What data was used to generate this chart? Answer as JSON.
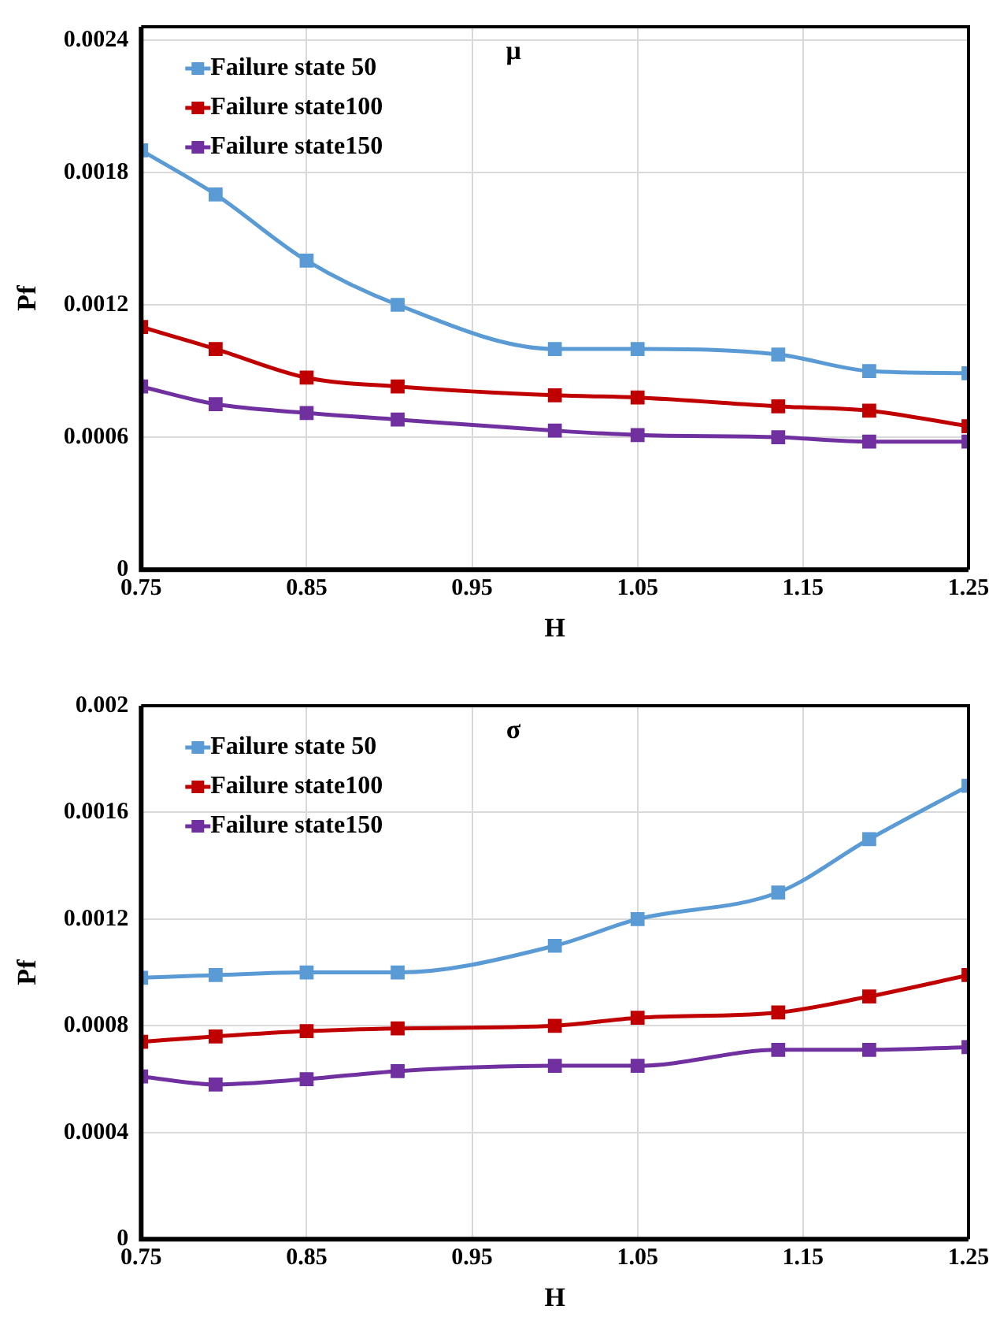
{
  "chart_data": [
    {
      "type": "line",
      "title": "μ",
      "xlabel": "H",
      "ylabel": "Pf",
      "xlim": [
        0.75,
        1.25
      ],
      "xticks": [
        0.75,
        0.85,
        0.95,
        1.05,
        1.15,
        1.25
      ],
      "ylim": [
        0,
        0.00246
      ],
      "yticks": [
        0,
        0.0006,
        0.0012,
        0.0018,
        0.0024
      ],
      "grid": true,
      "legend": "top left",
      "marker": "square",
      "line_style": "solid",
      "x": [
        0.75,
        0.795,
        0.85,
        0.905,
        1.0,
        1.05,
        1.135,
        1.19,
        1.25
      ],
      "series": [
        {
          "name": "Failure state 50",
          "color": "#5b9bd5",
          "values": [
            0.0019,
            0.0017,
            0.0014,
            0.0012,
            0.001,
            0.001,
            0.000975,
            0.0009,
            0.00089
          ]
        },
        {
          "name": "Failure state100",
          "color": "#c00000",
          "values": [
            0.0011,
            0.001,
            0.00087,
            0.00083,
            0.00079,
            0.00078,
            0.00074,
            0.00072,
            0.00065
          ]
        },
        {
          "name": "Failure state150",
          "color": "#7030a0",
          "values": [
            0.00083,
            0.00075,
            0.00071,
            0.00068,
            0.00063,
            0.00061,
            0.0006,
            0.00058,
            0.00058
          ]
        }
      ]
    },
    {
      "type": "line",
      "title": "σ",
      "xlabel": "H",
      "ylabel": "Pf",
      "xlim": [
        0.75,
        1.25
      ],
      "xticks": [
        0.75,
        0.85,
        0.95,
        1.05,
        1.15,
        1.25
      ],
      "ylim": [
        0,
        0.002
      ],
      "yticks": [
        0,
        0.0004,
        0.0008,
        0.0012,
        0.0016,
        0.002
      ],
      "grid": true,
      "legend": "top left",
      "marker": "square",
      "line_style": "solid",
      "x": [
        0.75,
        0.795,
        0.85,
        0.905,
        1.0,
        1.05,
        1.135,
        1.19,
        1.25
      ],
      "series": [
        {
          "name": "Failure state 50",
          "color": "#5b9bd5",
          "values": [
            0.00098,
            0.00099,
            0.001,
            0.001,
            0.0011,
            0.0012,
            0.0013,
            0.0015,
            0.0017
          ]
        },
        {
          "name": "Failure state100",
          "color": "#c00000",
          "values": [
            0.00074,
            0.00076,
            0.00078,
            0.00079,
            0.0008,
            0.00083,
            0.00085,
            0.00091,
            0.00099
          ]
        },
        {
          "name": "Failure state150",
          "color": "#7030a0",
          "values": [
            0.00061,
            0.00058,
            0.0006,
            0.00063,
            0.00065,
            0.00065,
            0.00071,
            0.00071,
            0.00072
          ]
        }
      ]
    }
  ]
}
